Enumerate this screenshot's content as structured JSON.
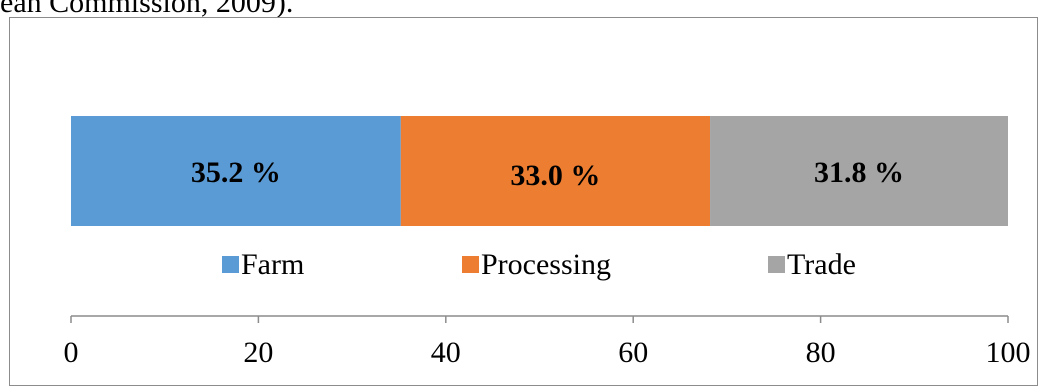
{
  "caption_fragment": "ean Commission, 2009).",
  "chart_data": {
    "type": "bar",
    "orientation": "horizontal",
    "stacked": true,
    "percent": true,
    "categories": [
      ""
    ],
    "series": [
      {
        "name": "Farm",
        "values": [
          35.2
        ],
        "label": "35.2 %",
        "color": "#5b9bd5"
      },
      {
        "name": "Processing",
        "values": [
          33.0
        ],
        "label": "33.0 %",
        "color": "#ed7d31"
      },
      {
        "name": "Trade",
        "values": [
          31.8
        ],
        "label": "31.8 %",
        "color": "#a5a5a5"
      }
    ],
    "xlim": [
      0,
      100
    ],
    "x_ticks": [
      0,
      20,
      40,
      60,
      80,
      100
    ],
    "x_tick_labels": [
      "0",
      "20",
      "40",
      "60",
      "80",
      "100"
    ],
    "legend_position": "below bar",
    "grid": false,
    "title": "",
    "xlabel": "",
    "ylabel": ""
  }
}
